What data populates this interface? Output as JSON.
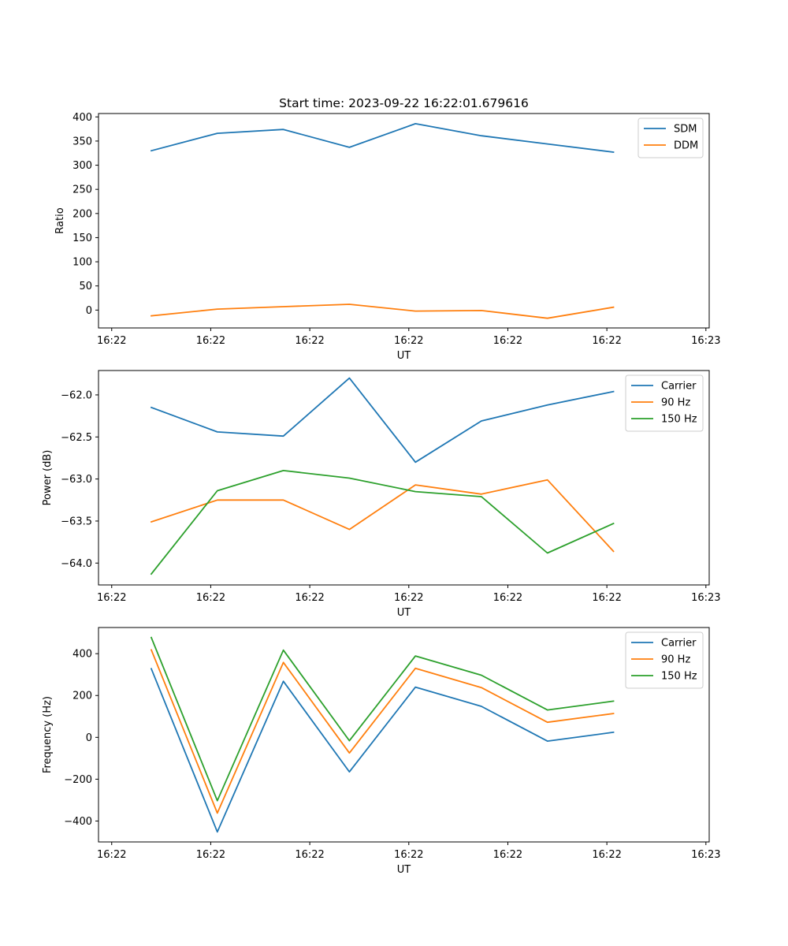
{
  "figure": {
    "title": "Start time: 2023-09-22 16:22:01.679616"
  },
  "chart_data": [
    {
      "type": "line",
      "title": "Start time: 2023-09-22 16:22:01.679616",
      "xlabel": "UT",
      "ylabel": "Ratio",
      "x": [
        1,
        2,
        3,
        4,
        5,
        6,
        7,
        8
      ],
      "xlim": [
        0.2,
        9.45
      ],
      "x_ticks": [
        0.4,
        1.9,
        3.4,
        4.9,
        6.4,
        7.9,
        9.4
      ],
      "x_tick_labels": [
        "16:22",
        "16:22",
        "16:22",
        "16:22",
        "16:22",
        "16:22",
        "16:23"
      ],
      "ylim": [
        -37,
        407
      ],
      "y_ticks": [
        0,
        50,
        100,
        150,
        200,
        250,
        300,
        350,
        400
      ],
      "y_tick_labels": [
        "0",
        "50",
        "100",
        "150",
        "200",
        "250",
        "300",
        "350",
        "400"
      ],
      "grid": false,
      "legend_position": "top-right",
      "series": [
        {
          "name": "SDM",
          "color": "#1f77b4",
          "values": [
            330,
            366,
            374,
            337,
            386,
            361,
            344,
            327
          ]
        },
        {
          "name": "DDM",
          "color": "#ff7f0e",
          "values": [
            -12,
            2,
            7,
            12,
            -2,
            -1,
            -17,
            6
          ]
        }
      ]
    },
    {
      "type": "line",
      "xlabel": "UT",
      "ylabel": "Power (dB)",
      "x": [
        1,
        2,
        3,
        4,
        5,
        6,
        7,
        8
      ],
      "xlim": [
        0.2,
        9.45
      ],
      "x_ticks": [
        0.4,
        1.9,
        3.4,
        4.9,
        6.4,
        7.9,
        9.4
      ],
      "x_tick_labels": [
        "16:22",
        "16:22",
        "16:22",
        "16:22",
        "16:22",
        "16:22",
        "16:23"
      ],
      "ylim": [
        -64.26,
        -61.71
      ],
      "y_ticks": [
        -64.0,
        -63.5,
        -63.0,
        -62.5,
        -62.0
      ],
      "y_tick_labels": [
        "−64.0",
        "−63.5",
        "−63.0",
        "−62.5",
        "−62.0"
      ],
      "grid": false,
      "legend_position": "top-right",
      "series": [
        {
          "name": "Carrier",
          "color": "#1f77b4",
          "values": [
            -62.15,
            -62.44,
            -62.49,
            -61.8,
            -62.8,
            -62.31,
            -62.12,
            -61.96
          ]
        },
        {
          "name": "90 Hz",
          "color": "#ff7f0e",
          "values": [
            -63.51,
            -63.25,
            -63.25,
            -63.6,
            -63.07,
            -63.18,
            -63.01,
            -63.86
          ]
        },
        {
          "name": "150 Hz",
          "color": "#2ca02c",
          "values": [
            -64.13,
            -63.14,
            -62.9,
            -62.99,
            -63.15,
            -63.21,
            -63.88,
            -63.53
          ]
        }
      ]
    },
    {
      "type": "line",
      "xlabel": "UT",
      "ylabel": "Frequency (Hz)",
      "x": [
        1,
        2,
        3,
        4,
        5,
        6,
        7,
        8
      ],
      "xlim": [
        0.2,
        9.45
      ],
      "x_ticks": [
        0.4,
        1.9,
        3.4,
        4.9,
        6.4,
        7.9,
        9.4
      ],
      "x_tick_labels": [
        "16:22",
        "16:22",
        "16:22",
        "16:22",
        "16:22",
        "16:22",
        "16:23"
      ],
      "ylim": [
        -500,
        525
      ],
      "y_ticks": [
        -400,
        -200,
        0,
        200,
        400
      ],
      "y_tick_labels": [
        "−400",
        "−200",
        "0",
        "200",
        "400"
      ],
      "grid": false,
      "legend_position": "top-right",
      "series": [
        {
          "name": "Carrier",
          "color": "#1f77b4",
          "values": [
            328,
            -452,
            268,
            -165,
            240,
            148,
            -18,
            24
          ]
        },
        {
          "name": "90 Hz",
          "color": "#ff7f0e",
          "values": [
            418,
            -362,
            358,
            -75,
            330,
            238,
            72,
            114
          ]
        },
        {
          "name": "150 Hz",
          "color": "#2ca02c",
          "values": [
            477,
            -303,
            417,
            -16,
            389,
            297,
            131,
            173
          ]
        }
      ]
    }
  ]
}
